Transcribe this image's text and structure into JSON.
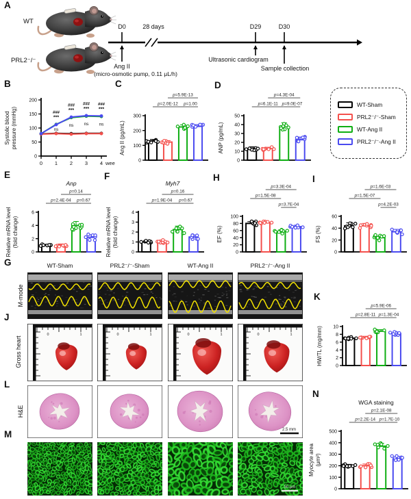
{
  "groups": [
    "WT-Sham",
    "PRL2⁻/⁻-Sham",
    "WT-Ang II",
    "PRL2⁻/⁻-Ang II"
  ],
  "group_colors": [
    "#000000",
    "#f4504c",
    "#0eae12",
    "#4a4af0"
  ],
  "panelA": {
    "letter": "A",
    "mice": [
      {
        "label": "WT"
      },
      {
        "label": "PRL2⁻/⁻"
      }
    ],
    "timeline": {
      "d0": "D0",
      "break_label": "28 days",
      "d29": "D29",
      "d30": "D30",
      "d0_note_line1": "Ang II",
      "d0_note_line2": "(micro-osmotic pump, 0.11 μL/h)",
      "d29_note": "Ultrasonic cardiogram",
      "d30_note": "Sample collection"
    }
  },
  "legend": {
    "items": [
      {
        "label": "WT-Sham",
        "color": "#000000"
      },
      {
        "label": "PRL2⁻/⁻-Sham",
        "color": "#f4504c"
      },
      {
        "label": "WT-Ang II",
        "color": "#0eae12"
      },
      {
        "label": "PRL2⁻/⁻-Ang II",
        "color": "#4a4af0"
      }
    ]
  },
  "panelG": {
    "letter": "G",
    "row_label": "M-mode"
  },
  "panelJ": {
    "letter": "J",
    "row_label": "Gross heart",
    "ruler_zero": "0",
    "ruler_one": "1"
  },
  "panelL": {
    "letter": "L",
    "row_label": "H&E",
    "scale_bar": "2.5 mm"
  },
  "panelM": {
    "letter": "M",
    "scale_bar": "50 μm"
  },
  "chart_data": [
    {
      "id": "B",
      "letter": "B",
      "type": "line",
      "ylabel_lines": [
        "Systolic blood",
        "pressure (mmHg)"
      ],
      "ylim": [
        0,
        200
      ],
      "yticks": [
        0,
        50,
        100,
        150,
        200
      ],
      "x": [
        0,
        1,
        2,
        3,
        4
      ],
      "xticks": [
        "0",
        "1",
        "2",
        "3",
        "4"
      ],
      "xunit": "weeks",
      "series": [
        {
          "name": "WT-Sham",
          "color_key": 0,
          "values": [
            79,
            81,
            80,
            81,
            81
          ]
        },
        {
          "name": "PRL2⁻/⁻-Sham",
          "color_key": 1,
          "values": [
            78,
            80,
            78,
            80,
            80
          ]
        },
        {
          "name": "WT-Ang II",
          "color_key": 2,
          "values": [
            80,
            113,
            137,
            142,
            141
          ]
        },
        {
          "name": "PRL2⁻/⁻-Ang II",
          "color_key": 3,
          "values": [
            80,
            112,
            139,
            144,
            143
          ]
        }
      ],
      "annotations": [
        {
          "x": 1,
          "above": [
            "###",
            "***"
          ],
          "below": "ns"
        },
        {
          "x": 2,
          "above": [
            "###",
            "***"
          ],
          "below": "ns"
        },
        {
          "x": 3,
          "above": [
            "###",
            "***"
          ],
          "below": "ns"
        },
        {
          "x": 4,
          "above": [
            "###",
            "***"
          ],
          "below": "ns"
        }
      ]
    },
    {
      "id": "C",
      "letter": "C",
      "type": "bar",
      "ylabel": "Ang II (pg/mL)",
      "ylim": [
        0,
        300
      ],
      "yticks": [
        0,
        100,
        200,
        300
      ],
      "values": [
        130,
        122,
        224,
        228
      ],
      "err": [
        10,
        10,
        14,
        12
      ],
      "pvals": [
        {
          "text": "p=5.9E-13",
          "from": 1,
          "to": 3,
          "row": 0
        },
        {
          "text": "p=2.0E-12",
          "from": 0,
          "to": 2,
          "row": 1
        },
        {
          "text": "p=1.00",
          "from": 2,
          "to": 3,
          "row": 1
        }
      ]
    },
    {
      "id": "D",
      "letter": "D",
      "type": "bar",
      "ylabel": "ANP (pg/mL)",
      "ylim": [
        0,
        50
      ],
      "yticks": [
        0,
        10,
        20,
        30,
        40,
        50
      ],
      "values": [
        13,
        13,
        38,
        23
      ],
      "err": [
        2,
        1.5,
        4,
        3
      ],
      "pvals": [
        {
          "text": "p=4.3E-04",
          "from": 1,
          "to": 3,
          "row": 0
        },
        {
          "text": "p=6.1E-11",
          "from": 0,
          "to": 2,
          "row": 1
        },
        {
          "text": "p=9.0E-07",
          "from": 2,
          "to": 3,
          "row": 1
        }
      ]
    },
    {
      "id": "E",
      "letter": "E",
      "type": "bar",
      "title": "Anp",
      "title_italic": true,
      "ylabel_lines": [
        "Relative mRNA level",
        "(fold change)"
      ],
      "ylim": [
        0,
        6
      ],
      "yticks": [
        0,
        2,
        4,
        6
      ],
      "values": [
        1,
        1,
        4,
        2.2
      ],
      "err": [
        0.15,
        0.2,
        0.6,
        0.4
      ],
      "pvals": [
        {
          "text": "p=0.14",
          "from": 1,
          "to": 3,
          "row": 0
        },
        {
          "text": "p=2.4E-04",
          "from": 0,
          "to": 2,
          "row": 1
        },
        {
          "text": "p=0.67",
          "from": 2,
          "to": 3,
          "row": 1
        }
      ]
    },
    {
      "id": "F",
      "letter": "F",
      "type": "bar",
      "title": "Myh7",
      "title_italic": true,
      "ylabel_lines": [
        "Relative mRNA level",
        "(fold change)"
      ],
      "ylim": [
        0,
        4
      ],
      "yticks": [
        0,
        1,
        2,
        3,
        4
      ],
      "values": [
        1,
        1.05,
        2.25,
        1.5
      ],
      "err": [
        0.12,
        0.15,
        0.35,
        0.2
      ],
      "pvals": [
        {
          "text": "p=0.16",
          "from": 1,
          "to": 3,
          "row": 0
        },
        {
          "text": "p=1.9E-04",
          "from": 0,
          "to": 2,
          "row": 1
        },
        {
          "text": "p=0.67",
          "from": 2,
          "to": 3,
          "row": 1
        }
      ]
    },
    {
      "id": "H",
      "letter": "H",
      "type": "bar",
      "ylabel": "EF (%)",
      "ylim": [
        0,
        100
      ],
      "yticks": [
        0,
        20,
        40,
        60,
        80,
        100
      ],
      "values": [
        80,
        82,
        57,
        71
      ],
      "err": [
        5,
        4,
        5,
        4
      ],
      "pvals": [
        {
          "text": "p=3.3E-04",
          "from": 1,
          "to": 3,
          "row": 0
        },
        {
          "text": "p=1.5E-08",
          "from": 0,
          "to": 2,
          "row": 1
        },
        {
          "text": "p=3.7E-04",
          "from": 2,
          "to": 3,
          "row": 2
        }
      ]
    },
    {
      "id": "I",
      "letter": "I",
      "type": "bar",
      "ylabel": "FS (%)",
      "ylim": [
        0,
        60
      ],
      "yticks": [
        0,
        20,
        40,
        60
      ],
      "values": [
        44,
        44,
        24,
        34
      ],
      "err": [
        5,
        4,
        4,
        4
      ],
      "pvals": [
        {
          "text": "p=1.6E-03",
          "from": 1,
          "to": 3,
          "row": 0
        },
        {
          "text": "p=1.5E-07",
          "from": 0,
          "to": 2,
          "row": 1
        },
        {
          "text": "p=4.2E-03",
          "from": 2,
          "to": 3,
          "row": 2
        }
      ]
    },
    {
      "id": "K",
      "letter": "K",
      "type": "bar",
      "ylabel": "HW/TL (mg/mm)",
      "ylim": [
        0,
        10
      ],
      "yticks": [
        0,
        2,
        4,
        6,
        8,
        10
      ],
      "values": [
        7,
        7.2,
        8.8,
        8.2
      ],
      "err": [
        0.3,
        0.3,
        0.4,
        0.4
      ],
      "pvals": [
        {
          "text": "p=5.9E-06",
          "from": 1,
          "to": 3,
          "row": 0
        },
        {
          "text": "p=2.8E-11",
          "from": 0,
          "to": 2,
          "row": 1
        },
        {
          "text": "p=1.3E-04",
          "from": 2,
          "to": 3,
          "row": 1
        }
      ]
    },
    {
      "id": "N",
      "letter": "N",
      "type": "bar",
      "title": "WGA staining",
      "ylabel_lines": [
        "Myocyte area",
        "(μm²)"
      ],
      "ylim": [
        0,
        500
      ],
      "yticks": [
        0,
        100,
        200,
        300,
        400,
        500
      ],
      "values": [
        200,
        200,
        370,
        260
      ],
      "err": [
        12,
        15,
        25,
        22
      ],
      "pvals": [
        {
          "text": "p=2.1E-08",
          "from": 1,
          "to": 3,
          "row": 0
        },
        {
          "text": "p=2.2E-14",
          "from": 0,
          "to": 2,
          "row": 1
        },
        {
          "text": "p=1.7E-10",
          "from": 2,
          "to": 3,
          "row": 1
        }
      ]
    }
  ]
}
